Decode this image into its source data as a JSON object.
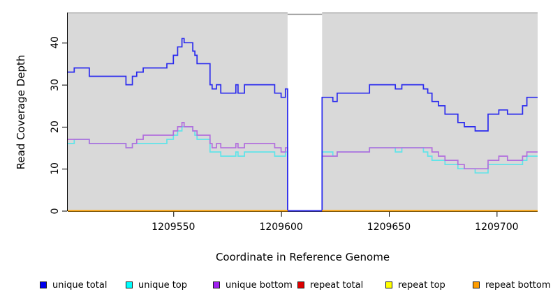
{
  "chart_data": {
    "type": "line",
    "subtype": "step-coverage-plot",
    "title": "",
    "xlabel": "Coordinate in Reference Genome",
    "ylabel": "Read Coverage Depth",
    "xlim": [
      1209501,
      1209719
    ],
    "ylim": [
      0,
      46
    ],
    "grid": false,
    "plot_bg": "#d9d9d9",
    "plot_border_top": "#9a9a9a",
    "gap_region": {
      "start": 1209603,
      "end": 1209618,
      "fill": "#ffffff",
      "top_edge": "#8c8c8c"
    },
    "xticks": [
      1209550,
      1209600,
      1209650,
      1209700
    ],
    "xtick_labels": [
      "1209550",
      "1209600",
      "1209650",
      "1209700"
    ],
    "yticks": [
      0,
      10,
      20,
      30,
      40
    ],
    "ytick_labels": [
      "0",
      "10",
      "20",
      "30",
      "40"
    ],
    "legend_position": "bottom",
    "series": [
      {
        "name": "unique top",
        "color": "#5fe4e9",
        "legend_fill": "#00ffff",
        "segments": [
          [
            1209501,
            1209503,
            16
          ],
          [
            1209504,
            1209510,
            17
          ],
          [
            1209511,
            1209527,
            16
          ],
          [
            1209528,
            1209530,
            15
          ],
          [
            1209531,
            1209535,
            16
          ],
          [
            1209536,
            1209546,
            16
          ],
          [
            1209547,
            1209549,
            17
          ],
          [
            1209550,
            1209551,
            18
          ],
          [
            1209552,
            1209553,
            19
          ],
          [
            1209554,
            1209558,
            20
          ],
          [
            1209559,
            1209559,
            19
          ],
          [
            1209560,
            1209560,
            18
          ],
          [
            1209561,
            1209566,
            17
          ],
          [
            1209567,
            1209571,
            14
          ],
          [
            1209572,
            1209578,
            13
          ],
          [
            1209579,
            1209579,
            14
          ],
          [
            1209580,
            1209582,
            13
          ],
          [
            1209583,
            1209596,
            14
          ],
          [
            1209597,
            1209601,
            13
          ],
          [
            1209602,
            1209602,
            14
          ],
          [
            1209603,
            1209618,
            0
          ],
          [
            1209619,
            1209623,
            14
          ],
          [
            1209624,
            1209625,
            13
          ],
          [
            1209626,
            1209640,
            14
          ],
          [
            1209641,
            1209652,
            15
          ],
          [
            1209653,
            1209655,
            14
          ],
          [
            1209656,
            1209665,
            15
          ],
          [
            1209666,
            1209667,
            14
          ],
          [
            1209668,
            1209669,
            13
          ],
          [
            1209670,
            1209675,
            12
          ],
          [
            1209676,
            1209681,
            11
          ],
          [
            1209682,
            1209689,
            10
          ],
          [
            1209690,
            1209695,
            9
          ],
          [
            1209696,
            1209711,
            11
          ],
          [
            1209712,
            1209713,
            12
          ],
          [
            1209714,
            1209718,
            13
          ]
        ]
      },
      {
        "name": "unique bottom",
        "color": "#b26fdd",
        "legend_fill": "#a020f0",
        "segments": [
          [
            1209501,
            1209510,
            17
          ],
          [
            1209511,
            1209527,
            16
          ],
          [
            1209528,
            1209530,
            15
          ],
          [
            1209531,
            1209532,
            16
          ],
          [
            1209533,
            1209535,
            17
          ],
          [
            1209536,
            1209549,
            18
          ],
          [
            1209550,
            1209551,
            19
          ],
          [
            1209552,
            1209553,
            20
          ],
          [
            1209554,
            1209554,
            21
          ],
          [
            1209555,
            1209558,
            20
          ],
          [
            1209559,
            1209560,
            19
          ],
          [
            1209561,
            1209566,
            18
          ],
          [
            1209567,
            1209567,
            16
          ],
          [
            1209568,
            1209569,
            15
          ],
          [
            1209570,
            1209571,
            16
          ],
          [
            1209572,
            1209578,
            15
          ],
          [
            1209579,
            1209579,
            16
          ],
          [
            1209580,
            1209582,
            15
          ],
          [
            1209583,
            1209596,
            16
          ],
          [
            1209597,
            1209599,
            15
          ],
          [
            1209600,
            1209601,
            14
          ],
          [
            1209602,
            1209602,
            15
          ],
          [
            1209603,
            1209618,
            0
          ],
          [
            1209619,
            1209625,
            13
          ],
          [
            1209626,
            1209640,
            14
          ],
          [
            1209641,
            1209669,
            15
          ],
          [
            1209670,
            1209672,
            14
          ],
          [
            1209673,
            1209675,
            13
          ],
          [
            1209676,
            1209681,
            12
          ],
          [
            1209682,
            1209684,
            11
          ],
          [
            1209685,
            1209695,
            10
          ],
          [
            1209696,
            1209700,
            12
          ],
          [
            1209701,
            1209704,
            13
          ],
          [
            1209705,
            1209711,
            12
          ],
          [
            1209712,
            1209713,
            13
          ],
          [
            1209714,
            1209718,
            14
          ]
        ]
      },
      {
        "name": "unique total",
        "color": "#2b2bee",
        "legend_fill": "#0000ee",
        "segments": [
          [
            1209501,
            1209503,
            33
          ],
          [
            1209504,
            1209510,
            34
          ],
          [
            1209511,
            1209527,
            32
          ],
          [
            1209528,
            1209530,
            30
          ],
          [
            1209531,
            1209532,
            32
          ],
          [
            1209533,
            1209535,
            33
          ],
          [
            1209536,
            1209546,
            34
          ],
          [
            1209547,
            1209549,
            35
          ],
          [
            1209550,
            1209551,
            37
          ],
          [
            1209552,
            1209553,
            39
          ],
          [
            1209554,
            1209554,
            41
          ],
          [
            1209555,
            1209558,
            40
          ],
          [
            1209559,
            1209559,
            38
          ],
          [
            1209560,
            1209560,
            37
          ],
          [
            1209561,
            1209566,
            35
          ],
          [
            1209567,
            1209567,
            30
          ],
          [
            1209568,
            1209569,
            29
          ],
          [
            1209570,
            1209571,
            30
          ],
          [
            1209572,
            1209578,
            28
          ],
          [
            1209579,
            1209579,
            30
          ],
          [
            1209580,
            1209582,
            28
          ],
          [
            1209583,
            1209596,
            30
          ],
          [
            1209597,
            1209599,
            28
          ],
          [
            1209600,
            1209601,
            27
          ],
          [
            1209602,
            1209602,
            29
          ],
          [
            1209603,
            1209618,
            0
          ],
          [
            1209619,
            1209623,
            27
          ],
          [
            1209624,
            1209625,
            26
          ],
          [
            1209626,
            1209640,
            28
          ],
          [
            1209641,
            1209652,
            30
          ],
          [
            1209653,
            1209655,
            29
          ],
          [
            1209656,
            1209665,
            30
          ],
          [
            1209666,
            1209667,
            29
          ],
          [
            1209668,
            1209669,
            28
          ],
          [
            1209670,
            1209672,
            26
          ],
          [
            1209673,
            1209675,
            25
          ],
          [
            1209676,
            1209681,
            23
          ],
          [
            1209682,
            1209684,
            21
          ],
          [
            1209685,
            1209689,
            20
          ],
          [
            1209690,
            1209695,
            19
          ],
          [
            1209696,
            1209700,
            23
          ],
          [
            1209701,
            1209704,
            24
          ],
          [
            1209705,
            1209711,
            23
          ],
          [
            1209712,
            1209713,
            25
          ],
          [
            1209714,
            1209718,
            27
          ]
        ]
      },
      {
        "name": "repeat total",
        "color": "#dd0000",
        "legend_fill": "#dd0000",
        "segments": [
          [
            1209501,
            1209602,
            0
          ],
          [
            1209619,
            1209718,
            0
          ]
        ]
      },
      {
        "name": "repeat top",
        "color": "#ffff00",
        "legend_fill": "#ffff00",
        "segments": [
          [
            1209501,
            1209602,
            0
          ],
          [
            1209619,
            1209718,
            0
          ]
        ]
      },
      {
        "name": "repeat bottom",
        "color": "#ff9d00",
        "legend_fill": "#ff9d00",
        "segments": [
          [
            1209501,
            1209602,
            0
          ],
          [
            1209619,
            1209718,
            0
          ]
        ]
      }
    ],
    "legend_order": [
      "unique total",
      "unique top",
      "unique bottom",
      "repeat total",
      "repeat top",
      "repeat bottom"
    ]
  }
}
